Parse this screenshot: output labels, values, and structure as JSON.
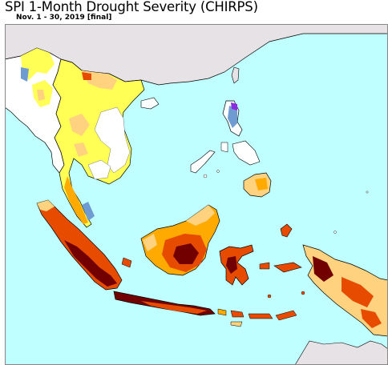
{
  "title": "SPI 1-Month Drought Severity (CHIRPS)",
  "subtitle": "Nov. 1 - 30, 2019 [final]",
  "colors": {
    "ocean": "#bfffff",
    "land_other": "#e6e2e6",
    "no_drought": "#ffffff",
    "abnormally_dry": "#ffff55",
    "moderate": "#ffd27f",
    "severe": "#ffaa00",
    "extreme": "#e64b00",
    "exceptional": "#730000",
    "wet": "#6e9bd2",
    "very_wet": "#8a2be2",
    "border": "#555555",
    "coast": "#000000"
  },
  "legend": []
}
